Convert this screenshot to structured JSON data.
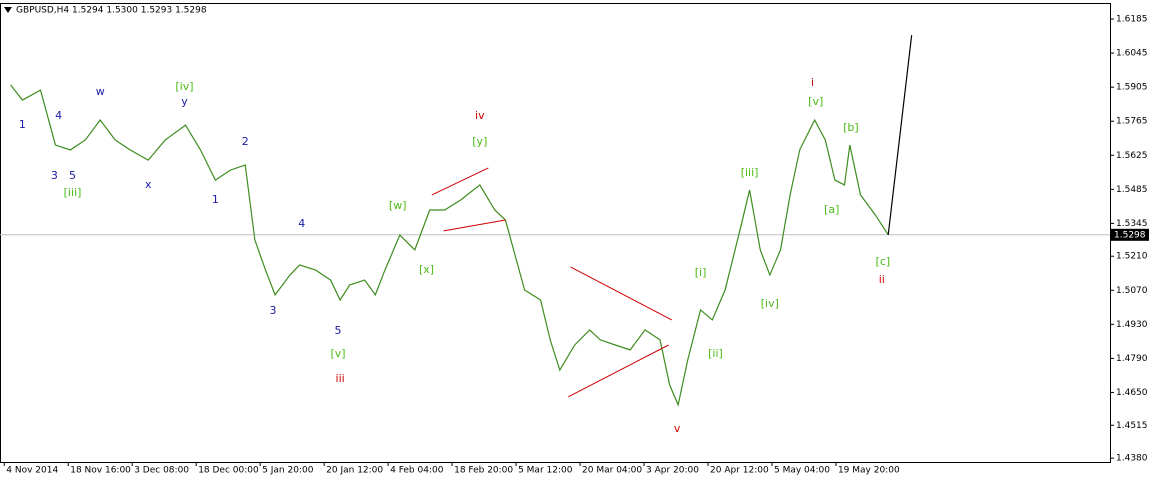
{
  "chart_data": {
    "type": "line",
    "title": "GBPUSD,H4  1.5294 1.5300 1.5293 1.5298",
    "xlim": [
      -4,
      1037
    ],
    "ylim": [
      1.4364,
      1.6251
    ],
    "xticks": [
      {
        "value": 0,
        "label": "4 Nov 2014"
      },
      {
        "value": 60,
        "label": "18 Nov 16:00"
      },
      {
        "value": 120,
        "label": "3 Dec 08:00"
      },
      {
        "value": 180,
        "label": "18 Dec 00:00"
      },
      {
        "value": 240,
        "label": "5 Jan 20:00"
      },
      {
        "value": 300,
        "label": "20 Jan 12:00"
      },
      {
        "value": 360,
        "label": "4 Feb 04:00"
      },
      {
        "value": 420,
        "label": "18 Feb 20:00"
      },
      {
        "value": 480,
        "label": "5 Mar 12:00"
      },
      {
        "value": 540,
        "label": "20 Mar 04:00"
      },
      {
        "value": 600,
        "label": "3 Apr 20:00"
      },
      {
        "value": 660,
        "label": "20 Apr 12:00"
      },
      {
        "value": 720,
        "label": "5 May 04:00"
      },
      {
        "value": 780,
        "label": "19 May 20:00"
      }
    ],
    "yticks": [
      1.6185,
      1.6045,
      1.5905,
      1.5765,
      1.5625,
      1.5485,
      1.5345,
      {
        "value": 1.521,
        "label": "1.5210"
      },
      {
        "value": 1.507,
        "label": "1.5070"
      },
      {
        "value": 1.493,
        "label": "1.4930"
      },
      {
        "value": 1.479,
        "label": "1.4790"
      },
      {
        "value": 1.465,
        "label": "1.4650"
      },
      1.4515,
      {
        "value": 1.438,
        "label": "1.4380"
      }
    ],
    "last_price": 1.5298,
    "series": [
      {
        "color": "#3d8c1e",
        "x": [
          6,
          17,
          34,
          48,
          62,
          76,
          90,
          104,
          118,
          135,
          151,
          170,
          184,
          198,
          212,
          226,
          235,
          245,
          254,
          268,
          277,
          292,
          306,
          315,
          324,
          338,
          348,
          357,
          371,
          385,
          399,
          413,
          428,
          446,
          460,
          470,
          479,
          488,
          503,
          512,
          521,
          535,
          549,
          559,
          573,
          587,
          601,
          615,
          624,
          632,
          641,
          653,
          664,
          676,
          690,
          699,
          709,
          718,
          728,
          737,
          746,
          760,
          770,
          779,
          788,
          793,
          803,
          817,
          829
        ],
        "values": [
          1.5914,
          1.5852,
          1.5893,
          1.5667,
          1.5647,
          1.5688,
          1.577,
          1.5688,
          1.5647,
          1.5605,
          1.5688,
          1.5749,
          1.5647,
          1.5523,
          1.5564,
          1.5585,
          1.5277,
          1.5153,
          1.5051,
          1.5133,
          1.5174,
          1.5153,
          1.5112,
          1.503,
          1.5092,
          1.5112,
          1.5051,
          1.5153,
          1.5297,
          1.5236,
          1.54,
          1.54,
          1.5441,
          1.5503,
          1.54,
          1.5359,
          1.5215,
          1.5071,
          1.503,
          1.4866,
          1.4742,
          1.4845,
          1.4907,
          1.4866,
          1.4845,
          1.4825,
          1.4907,
          1.4866,
          1.4681,
          1.4599,
          1.4784,
          1.4989,
          1.4948,
          1.5071,
          1.5318,
          1.5482,
          1.5236,
          1.5133,
          1.5236,
          1.5462,
          1.5647,
          1.577,
          1.5688,
          1.5523,
          1.5503,
          1.5667,
          1.5462,
          1.5379,
          1.5298
        ]
      },
      {
        "color": "#000000",
        "x": [
          829,
          851
        ],
        "values": [
          1.5298,
          1.6119
        ]
      }
    ],
    "trendlines": {
      "color": "#cc0000",
      "lines": [
        [
          [
            401,
            1.5462
          ],
          [
            454,
            1.5573
          ]
        ],
        [
          [
            412,
            1.5314
          ],
          [
            470,
            1.5359
          ]
        ],
        [
          [
            531,
            1.5166
          ],
          [
            626,
            1.4948
          ]
        ],
        [
          [
            529,
            1.4632
          ],
          [
            623,
            1.4845
          ]
        ]
      ]
    },
    "annotations": [
      {
        "text": "1",
        "x": 17,
        "y": 1.5749,
        "color": "#1a1aa6"
      },
      {
        "text": "4",
        "x": 51,
        "y": 1.5786,
        "color": "#1a1aa6"
      },
      {
        "text": "3",
        "x": 47,
        "y": 1.554,
        "color": "#1a1aa6"
      },
      {
        "text": "5",
        "x": 64,
        "y": 1.554,
        "color": "#1a1aa6"
      },
      {
        "text": "[iii]",
        "x": 64,
        "y": 1.547,
        "color": "#4cbb17"
      },
      {
        "text": "w",
        "x": 90,
        "y": 1.5885,
        "color": "#1a1aa6"
      },
      {
        "text": "[iv]",
        "x": 169,
        "y": 1.5906,
        "color": "#4cbb17"
      },
      {
        "text": "y",
        "x": 169,
        "y": 1.5844,
        "color": "#1a1aa6"
      },
      {
        "text": "x",
        "x": 135,
        "y": 1.5503,
        "color": "#1a1aa6"
      },
      {
        "text": "2",
        "x": 226,
        "y": 1.5679,
        "color": "#1a1aa6"
      },
      {
        "text": "1",
        "x": 198,
        "y": 1.5441,
        "color": "#1a1aa6"
      },
      {
        "text": "4",
        "x": 279,
        "y": 1.5342,
        "color": "#1a1aa6"
      },
      {
        "text": "3",
        "x": 252,
        "y": 1.4985,
        "color": "#1a1aa6"
      },
      {
        "text": "5",
        "x": 313,
        "y": 1.4903,
        "color": "#1a1aa6"
      },
      {
        "text": "[v]",
        "x": 313,
        "y": 1.4808,
        "color": "#4cbb17"
      },
      {
        "text": "iii",
        "x": 315,
        "y": 1.4705,
        "color": "#cc0000"
      },
      {
        "text": "[w]",
        "x": 369,
        "y": 1.5416,
        "color": "#4cbb17"
      },
      {
        "text": "[x]",
        "x": 396,
        "y": 1.5153,
        "color": "#4cbb17"
      },
      {
        "text": "iv",
        "x": 446,
        "y": 1.5786,
        "color": "#cc0000"
      },
      {
        "text": "[y]",
        "x": 446,
        "y": 1.5679,
        "color": "#4cbb17"
      },
      {
        "text": "v",
        "x": 631,
        "y": 1.45,
        "color": "#cc0000"
      },
      {
        "text": "[i]",
        "x": 653,
        "y": 1.5141,
        "color": "#4cbb17"
      },
      {
        "text": "[ii]",
        "x": 667,
        "y": 1.4808,
        "color": "#4cbb17"
      },
      {
        "text": "[iii]",
        "x": 699,
        "y": 1.5552,
        "color": "#4cbb17"
      },
      {
        "text": "[iv]",
        "x": 718,
        "y": 1.5014,
        "color": "#4cbb17"
      },
      {
        "text": "i",
        "x": 758,
        "y": 1.5922,
        "color": "#cc0000"
      },
      {
        "text": "[v]",
        "x": 761,
        "y": 1.5844,
        "color": "#4cbb17"
      },
      {
        "text": "[b]",
        "x": 794,
        "y": 1.5737,
        "color": "#4cbb17"
      },
      {
        "text": "[a]",
        "x": 776,
        "y": 1.54,
        "color": "#4cbb17"
      },
      {
        "text": "[c]",
        "x": 824,
        "y": 1.5186,
        "color": "#4cbb17"
      },
      {
        "text": "ii",
        "x": 823,
        "y": 1.5112,
        "color": "#cc0000"
      }
    ]
  }
}
